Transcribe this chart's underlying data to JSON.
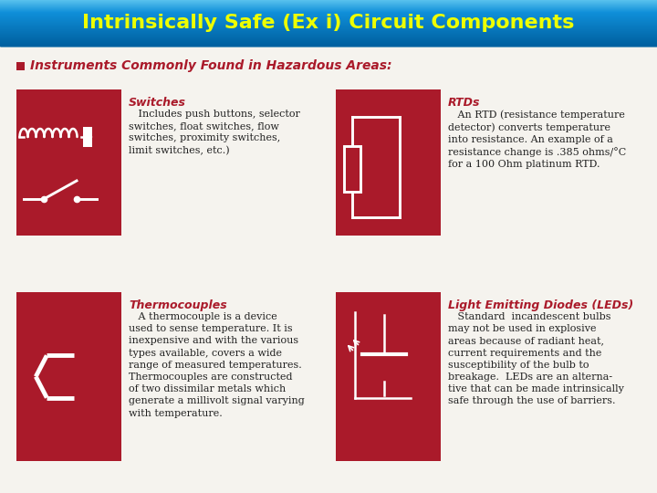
{
  "title": "Intrinsically Safe (Ex i) Circuit Components",
  "title_color": "#EEFF00",
  "title_bg_top": "#60c8f0",
  "title_bg_mid": "#1090d8",
  "title_bg_bot": "#0060a0",
  "bg_color": "#f5f3ee",
  "red_color": "#aa1a2a",
  "section_header": "Instruments Commonly Found in Hazardous Areas:",
  "components": [
    {
      "name": "Switches",
      "col": 0,
      "row": 0,
      "description": "   Includes push buttons, selector\nswitches, float switches, flow\nswitches, proximity switches,\nlimit switches, etc.)"
    },
    {
      "name": "RTDs",
      "col": 1,
      "row": 0,
      "description": "   An RTD (resistance temperature\ndetector) converts temperature\ninto resistance. An example of a\nresistance change is .385 ohms/°C\nfor a 100 Ohm platinum RTD."
    },
    {
      "name": "Thermocouples",
      "col": 0,
      "row": 1,
      "description": "   A thermocouple is a device\nused to sense temperature. It is\ninexpensive and with the various\ntypes available, covers a wide\nrange of measured temperatures.\nThermocouples are constructed\nof two dissimilar metals which\ngenerate a millivolt signal varying\nwith temperature."
    },
    {
      "name": "Light Emitting Diodes (LEDs)",
      "col": 1,
      "row": 1,
      "description": "   Standard  incandescent bulbs\nmay not be used in explosive\nareas because of radiant heat,\ncurrent requirements and the\nsusceptibility of the bulb to\nbreakage.  LEDs are an alterna-\ntive that can be made intrinsically\nsafe through the use of barriers."
    }
  ],
  "title_fontsize": 16,
  "header_fontsize": 10,
  "name_fontsize": 9,
  "desc_fontsize": 8
}
